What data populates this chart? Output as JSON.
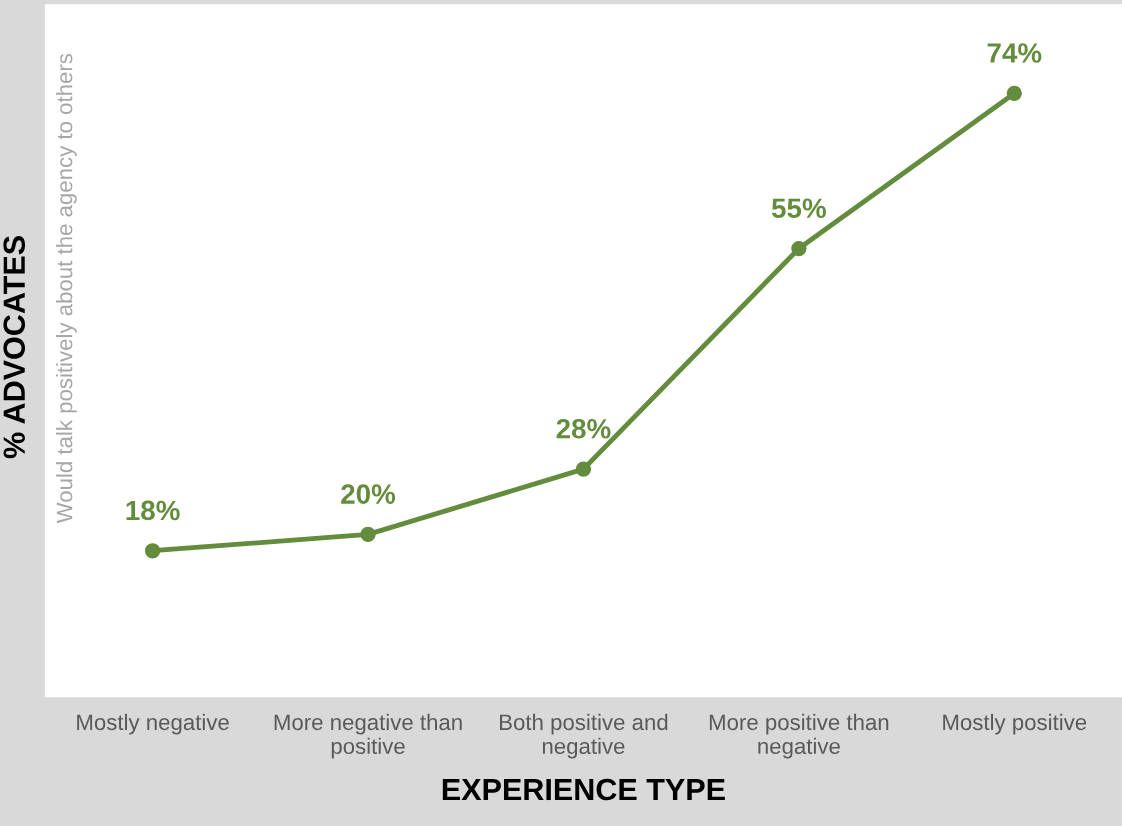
{
  "chart_data": {
    "type": "line",
    "xlabel": "EXPERIENCE TYPE",
    "ylabel": "% ADVOCATES",
    "annotations": [
      "Would talk positively about the agency to others"
    ],
    "categories": [
      "Mostly negative",
      "More negative than\npositive",
      "Both positive and\nnegative",
      "More positive than\nnegative",
      "Mostly positive"
    ],
    "series": [
      {
        "color": "#638c3c",
        "values": [
          18,
          20,
          28,
          55,
          74
        ],
        "value_labels": [
          "18%",
          "20%",
          "28%",
          "55%",
          "74%"
        ]
      }
    ],
    "marker": "circle",
    "line_style": "solid",
    "grid": false,
    "legend": false
  }
}
